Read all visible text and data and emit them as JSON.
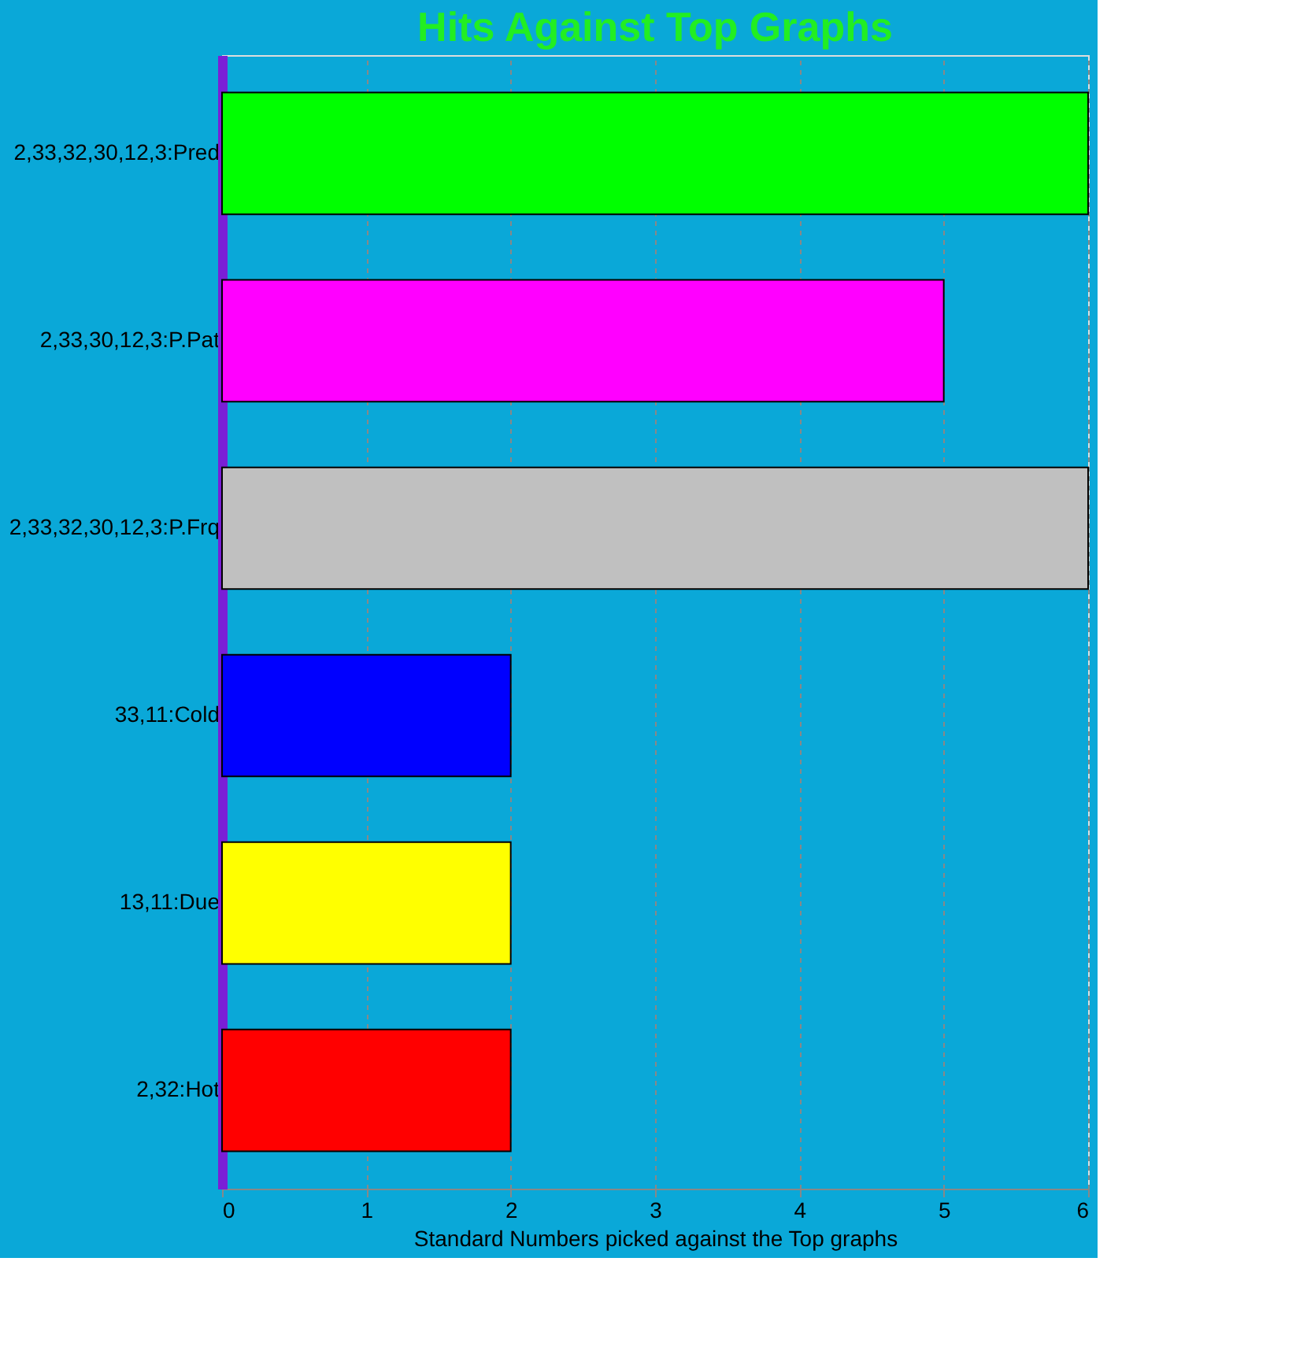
{
  "chart_data": {
    "type": "bar",
    "orientation": "horizontal",
    "title": "Hits Against Top Graphs",
    "xlabel": "Standard Numbers picked against the Top graphs",
    "categories": [
      "2,33,32,30,12,3:Pred",
      "2,33,30,12,3:P.Pat",
      "2,33,32,30,12,3:P.Frq",
      "33,11:Cold",
      "13,11:Due",
      "2,32:Hot"
    ],
    "values": [
      6,
      5,
      6,
      2,
      2,
      2
    ],
    "colors": [
      "#00ff00",
      "#ff00ff",
      "#c0c0c0",
      "#0000ff",
      "#ffff00",
      "#ff0000"
    ],
    "xlim": [
      0,
      6
    ],
    "xticks": [
      0,
      1,
      2,
      3,
      4,
      5,
      6
    ],
    "grid": "x"
  }
}
